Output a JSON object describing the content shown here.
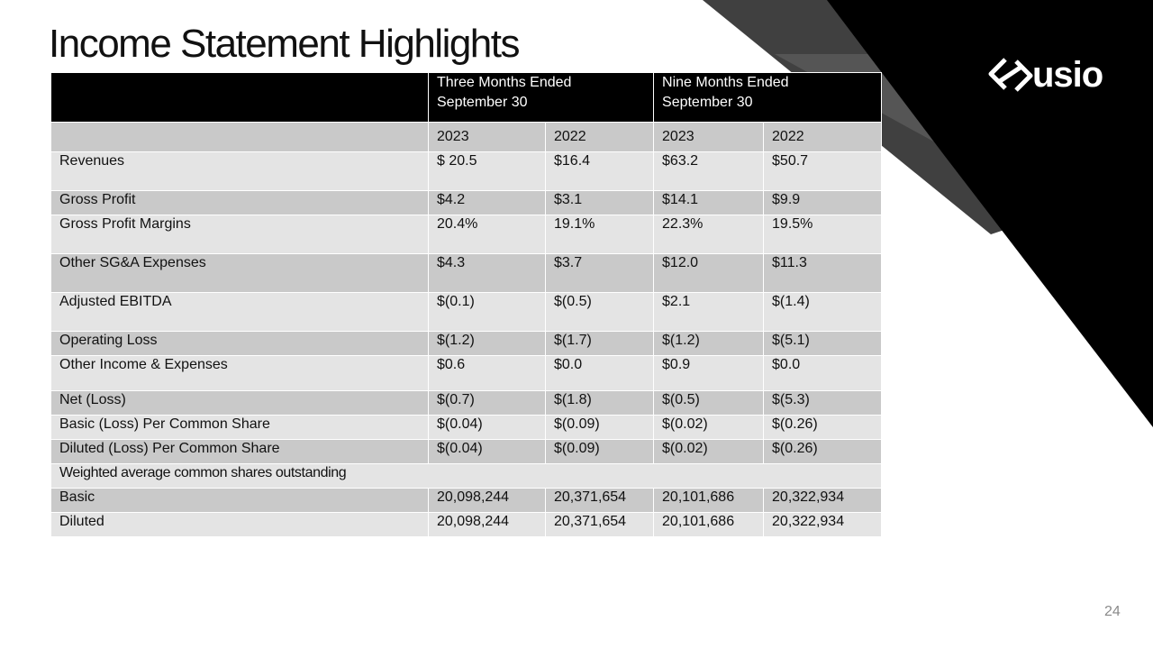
{
  "slide": {
    "title": "Income Statement Highlights",
    "page_number": "24",
    "brand_name": "usio",
    "colors": {
      "black": "#000000",
      "dark_gray": "#404040",
      "mid_gray": "#606060",
      "row_dark": "#c9c9c9",
      "row_light": "#e4e4e4"
    }
  },
  "table": {
    "group_headers": [
      "Three Months Ended September 30",
      "Nine Months Ended September 30"
    ],
    "years": [
      "2023",
      "2022",
      "2023",
      "2022"
    ],
    "rows": [
      {
        "label": "Revenues",
        "values": [
          "$ 20.5",
          "$16.4",
          "$63.2",
          "$50.7"
        ]
      },
      {
        "label": "Gross Profit",
        "values": [
          "$4.2",
          "$3.1",
          "$14.1",
          "$9.9"
        ]
      },
      {
        "label": "Gross Profit Margins",
        "values": [
          "20.4%",
          "19.1%",
          "22.3%",
          "19.5%"
        ]
      },
      {
        "label": "Other SG&A Expenses",
        "values": [
          "$4.3",
          "$3.7",
          "$12.0",
          "$11.3"
        ]
      },
      {
        "label": "Adjusted EBITDA",
        "values": [
          "$(0.1)",
          "$(0.5)",
          "$2.1",
          "$(1.4)"
        ]
      },
      {
        "label": "Operating Loss",
        "values": [
          "$(1.2)",
          "$(1.7)",
          "$(1.2)",
          "$(5.1)"
        ]
      },
      {
        "label": "Other Income & Expenses",
        "values": [
          "$0.6",
          "$0.0",
          "$0.9",
          "$0.0"
        ]
      },
      {
        "label": "Net (Loss)",
        "values": [
          "$(0.7)",
          "$(1.8)",
          "$(0.5)",
          "$(5.3)"
        ]
      },
      {
        "label": "Basic (Loss) Per Common Share",
        "values": [
          "$(0.04)",
          "$(0.09)",
          "$(0.02)",
          "$(0.26)"
        ]
      },
      {
        "label": "Diluted (Loss) Per Common Share",
        "values": [
          "$(0.04)",
          "$(0.09)",
          "$(0.02)",
          "$(0.26)"
        ]
      }
    ],
    "section_label": "Weighted average common shares outstanding",
    "share_rows": [
      {
        "label": "Basic",
        "values": [
          "20,098,244",
          "20,371,654",
          "20,101,686",
          "20,322,934"
        ]
      },
      {
        "label": "Diluted",
        "values": [
          "20,098,244",
          "20,371,654",
          "20,101,686",
          "20,322,934"
        ]
      }
    ]
  }
}
